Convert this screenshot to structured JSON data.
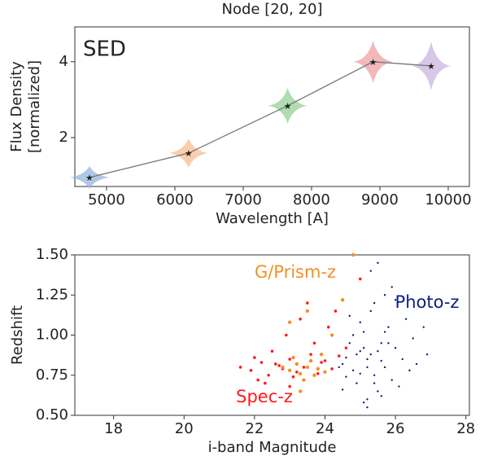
{
  "chart_data": [
    {
      "type": "line",
      "title": "Node [20, 20]",
      "annotation": "SED",
      "xlabel": "Wavelength [A]",
      "ylabel": [
        "Flux Density",
        "[normalized]"
      ],
      "x": [
        4750,
        6200,
        7650,
        8900,
        9750
      ],
      "values": [
        0.95,
        1.59,
        2.84,
        4.0,
        3.89
      ],
      "color": "#777777",
      "point_colors": [
        "#8fb0d8",
        "#f5b98a",
        "#8fcf8f",
        "#ee9a9a",
        "#c7b1dd"
      ],
      "xlim": [
        4536,
        10310
      ],
      "ylim": [
        0.71,
        4.92
      ],
      "xticks": [
        5000,
        6000,
        7000,
        8000,
        9000,
        10000
      ],
      "yticks": [
        2,
        4
      ]
    },
    {
      "type": "scatter",
      "xlabel": "i-band Magnitude",
      "ylabel": [
        "Redshift"
      ],
      "xlim": [
        16.9,
        28.1
      ],
      "ylim": [
        0.5,
        1.5
      ],
      "xticks": [
        18,
        20,
        22,
        24,
        26,
        28
      ],
      "yticks": [
        {
          "value": 0.5,
          "label": "0.50"
        },
        {
          "value": 0.75,
          "label": "0.75"
        },
        {
          "value": 1.0,
          "label": "1.00"
        },
        {
          "value": 1.25,
          "label": "1.25"
        },
        {
          "value": 1.5,
          "label": "1.50"
        }
      ],
      "series": [
        {
          "name": "Photo-z",
          "color": "#0d1f7a",
          "x": [
            24.5,
            24.8,
            25.0,
            25.2,
            25.4,
            25.6,
            25.1,
            24.9,
            25.3,
            25.7,
            26.0,
            26.3,
            24.6,
            25.5,
            25.8,
            24.7,
            25.2,
            25.0,
            25.9,
            26.5,
            24.4,
            25.3,
            25.6,
            26.1,
            25.4,
            24.8,
            25.1,
            25.7,
            26.8,
            25.5,
            24.6,
            25.9,
            25.2,
            26.2,
            25.0,
            24.9,
            25.6,
            26.4,
            25.3,
            25.8,
            24.7,
            25.4,
            26.0,
            25.1,
            26.6,
            25.5,
            24.5,
            25.7,
            26.9,
            25.2
          ],
          "values": [
            0.82,
            0.78,
            0.9,
            0.85,
            0.75,
            0.95,
            1.02,
            0.7,
            0.88,
            0.8,
            0.92,
            1.1,
            0.86,
            0.65,
            1.05,
            0.95,
            0.6,
            0.76,
            0.72,
            0.98,
            0.8,
            1.15,
            0.84,
            0.68,
            1.2,
            1.0,
            0.58,
            1.25,
            1.05,
            0.9,
            0.74,
            1.3,
            0.55,
            0.85,
            1.08,
            0.88,
            0.62,
            0.78,
            1.4,
            0.95,
            1.12,
            0.7,
            1.22,
            0.92,
            0.82,
            1.45,
            0.66,
            1.02,
            0.88,
            0.8
          ]
        },
        {
          "name": "Spec-z",
          "color": "#ff1a1a",
          "x": [
            21.6,
            21.9,
            22.2,
            22.4,
            22.6,
            22.8,
            23.0,
            23.2,
            23.4,
            23.6,
            23.8,
            24.0,
            24.2,
            22.1,
            22.5,
            22.9,
            23.3,
            23.7,
            24.1,
            24.4,
            22.3,
            22.7,
            23.1,
            23.5,
            23.9,
            24.3,
            22.0,
            23.0,
            24.6,
            25.0
          ],
          "values": [
            0.8,
            0.78,
            0.83,
            0.75,
            0.82,
            0.79,
            0.85,
            0.77,
            0.8,
            0.88,
            0.76,
            0.84,
            0.79,
            0.72,
            0.9,
            1.0,
            1.1,
            0.95,
            1.05,
            0.87,
            0.7,
            0.81,
            0.74,
            1.2,
            0.83,
            1.15,
            0.86,
            0.68,
            0.92,
            1.35
          ]
        },
        {
          "name": "G/Prism-z",
          "color": "#f39022",
          "x": [
            22.8,
            23.0,
            23.2,
            23.3,
            23.5,
            23.6,
            23.8,
            23.1,
            23.4,
            23.7,
            23.9,
            24.2,
            23.0,
            23.5,
            24.5,
            23.3,
            24.0,
            24.8
          ],
          "values": [
            0.8,
            0.78,
            0.82,
            0.76,
            0.8,
            0.84,
            0.79,
            0.86,
            0.72,
            0.75,
            0.88,
            1.0,
            1.08,
            1.15,
            1.22,
            0.65,
            0.77,
            1.5
          ]
        }
      ]
    }
  ]
}
